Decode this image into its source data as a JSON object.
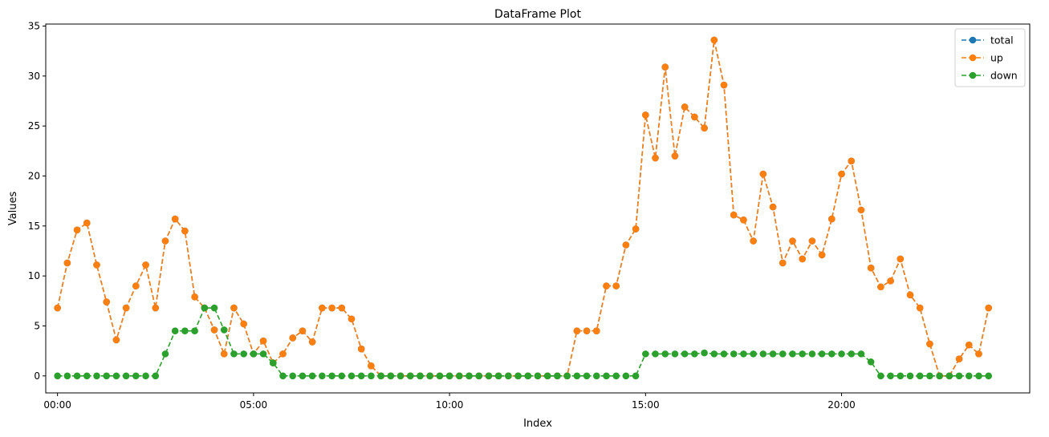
{
  "chart_data": {
    "type": "line",
    "title": "DataFrame Plot",
    "xlabel": "Index",
    "ylabel": "Values",
    "x_step_hours": 0.25,
    "x_count": 96,
    "xlim": [
      -0.3,
      24.8
    ],
    "ylim": [
      -1.7,
      35.2
    ],
    "x_ticks": [
      0,
      5,
      10,
      15,
      20
    ],
    "x_tick_labels": [
      "00:00",
      "05:00",
      "10:00",
      "15:00",
      "20:00"
    ],
    "y_ticks": [
      0,
      5,
      10,
      15,
      20,
      25,
      30,
      35
    ],
    "y_tick_labels": [
      "0",
      "5",
      "10",
      "15",
      "20",
      "25",
      "30",
      "35"
    ],
    "grid": false,
    "legend_position": "top-right",
    "line_style": "dashed",
    "marker": "circle",
    "series": [
      {
        "name": "total",
        "color": "#1f77b4",
        "values": [
          6.8,
          11.3,
          14.6,
          15.3,
          11.1,
          7.4,
          3.6,
          6.8,
          9.0,
          11.1,
          6.8,
          13.5,
          15.7,
          14.5,
          7.9,
          6.8,
          4.6,
          2.2,
          6.8,
          5.2,
          2.2,
          3.5,
          1.3,
          2.2,
          3.8,
          4.5,
          3.4,
          6.8,
          6.8,
          6.8,
          5.7,
          2.7,
          1.0,
          0,
          0,
          0,
          0,
          0,
          0,
          0,
          0,
          0,
          0,
          0,
          0,
          0,
          0,
          0,
          0,
          0,
          0,
          0,
          0,
          4.5,
          4.5,
          4.5,
          9.0,
          9.0,
          13.1,
          14.7,
          26.1,
          21.8,
          30.9,
          22.0,
          26.9,
          25.9,
          24.8,
          33.6,
          29.1,
          16.1,
          15.6,
          13.5,
          20.2,
          16.9,
          11.3,
          13.5,
          11.7,
          13.5,
          12.1,
          15.7,
          20.2,
          21.5,
          16.6,
          10.8,
          8.9,
          9.5,
          11.7,
          8.1,
          6.8,
          3.2,
          0,
          0,
          1.7,
          3.1,
          2.2,
          6.8
        ]
      },
      {
        "name": "up",
        "color": "#ff7f0e",
        "values": [
          6.8,
          11.3,
          14.6,
          15.3,
          11.1,
          7.4,
          3.6,
          6.8,
          9.0,
          11.1,
          6.8,
          13.5,
          15.7,
          14.5,
          7.9,
          6.8,
          4.6,
          2.2,
          6.8,
          5.2,
          2.2,
          3.5,
          1.3,
          2.2,
          3.8,
          4.5,
          3.4,
          6.8,
          6.8,
          6.8,
          5.7,
          2.7,
          1.0,
          0,
          0,
          0,
          0,
          0,
          0,
          0,
          0,
          0,
          0,
          0,
          0,
          0,
          0,
          0,
          0,
          0,
          0,
          0,
          0,
          4.5,
          4.5,
          4.5,
          9.0,
          9.0,
          13.1,
          14.7,
          26.1,
          21.8,
          30.9,
          22.0,
          26.9,
          25.9,
          24.8,
          33.6,
          29.1,
          16.1,
          15.6,
          13.5,
          20.2,
          16.9,
          11.3,
          13.5,
          11.7,
          13.5,
          12.1,
          15.7,
          20.2,
          21.5,
          16.6,
          10.8,
          8.9,
          9.5,
          11.7,
          8.1,
          6.8,
          3.2,
          0,
          0,
          1.7,
          3.1,
          2.2,
          6.8
        ]
      },
      {
        "name": "down",
        "color": "#2ca02c",
        "values": [
          0,
          0,
          0,
          0,
          0,
          0,
          0,
          0,
          0,
          0,
          0,
          2.2,
          4.5,
          4.5,
          4.5,
          6.8,
          6.8,
          4.6,
          2.2,
          2.2,
          2.2,
          2.2,
          1.3,
          0,
          0,
          0,
          0,
          0,
          0,
          0,
          0,
          0,
          0,
          0,
          0,
          0,
          0,
          0,
          0,
          0,
          0,
          0,
          0,
          0,
          0,
          0,
          0,
          0,
          0,
          0,
          0,
          0,
          0,
          0,
          0,
          0,
          0,
          0,
          0,
          0,
          2.2,
          2.2,
          2.2,
          2.2,
          2.2,
          2.2,
          2.3,
          2.2,
          2.2,
          2.2,
          2.2,
          2.2,
          2.2,
          2.2,
          2.2,
          2.2,
          2.2,
          2.2,
          2.2,
          2.2,
          2.2,
          2.2,
          2.2,
          1.4,
          0,
          0,
          0,
          0,
          0,
          0,
          0,
          0,
          0,
          0,
          0,
          0
        ]
      }
    ]
  }
}
